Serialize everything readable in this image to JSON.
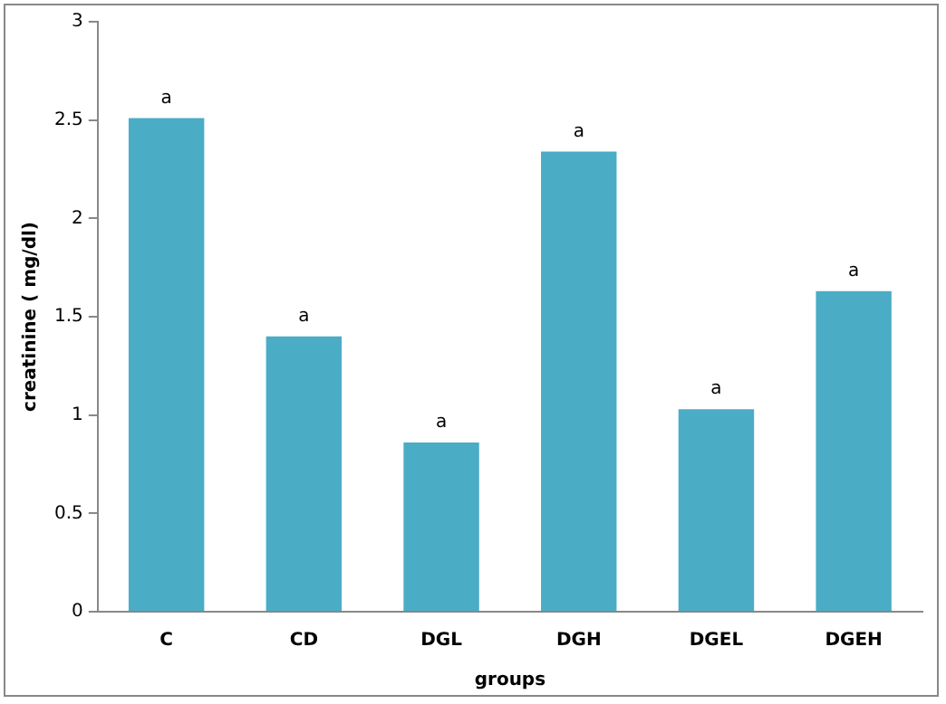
{
  "chart_data": {
    "type": "bar",
    "xlabel": "groups",
    "ylabel": "creatinine ( mg/dl)",
    "categories": [
      "C",
      "CD",
      "DGL",
      "DGH",
      "DGEL",
      "DGEH"
    ],
    "values": [
      2.51,
      1.4,
      0.86,
      2.34,
      1.03,
      1.63
    ],
    "color": "#4bacc6",
    "ylim": [
      0,
      3
    ],
    "yticks": [
      0,
      0.5,
      1,
      1.5,
      2,
      2.5,
      3
    ],
    "grid": false,
    "legend": false,
    "annotations": [
      {
        "text": "a",
        "x": "C",
        "y": 2.51
      },
      {
        "text": "a",
        "x": "CD",
        "y": 1.4
      },
      {
        "text": "a",
        "x": "DGL",
        "y": 0.86
      },
      {
        "text": "a",
        "x": "DGH",
        "y": 2.34
      },
      {
        "text": "a",
        "x": "DGEL",
        "y": 1.03
      },
      {
        "text": "a",
        "x": "DGEH",
        "y": 1.63
      }
    ]
  }
}
